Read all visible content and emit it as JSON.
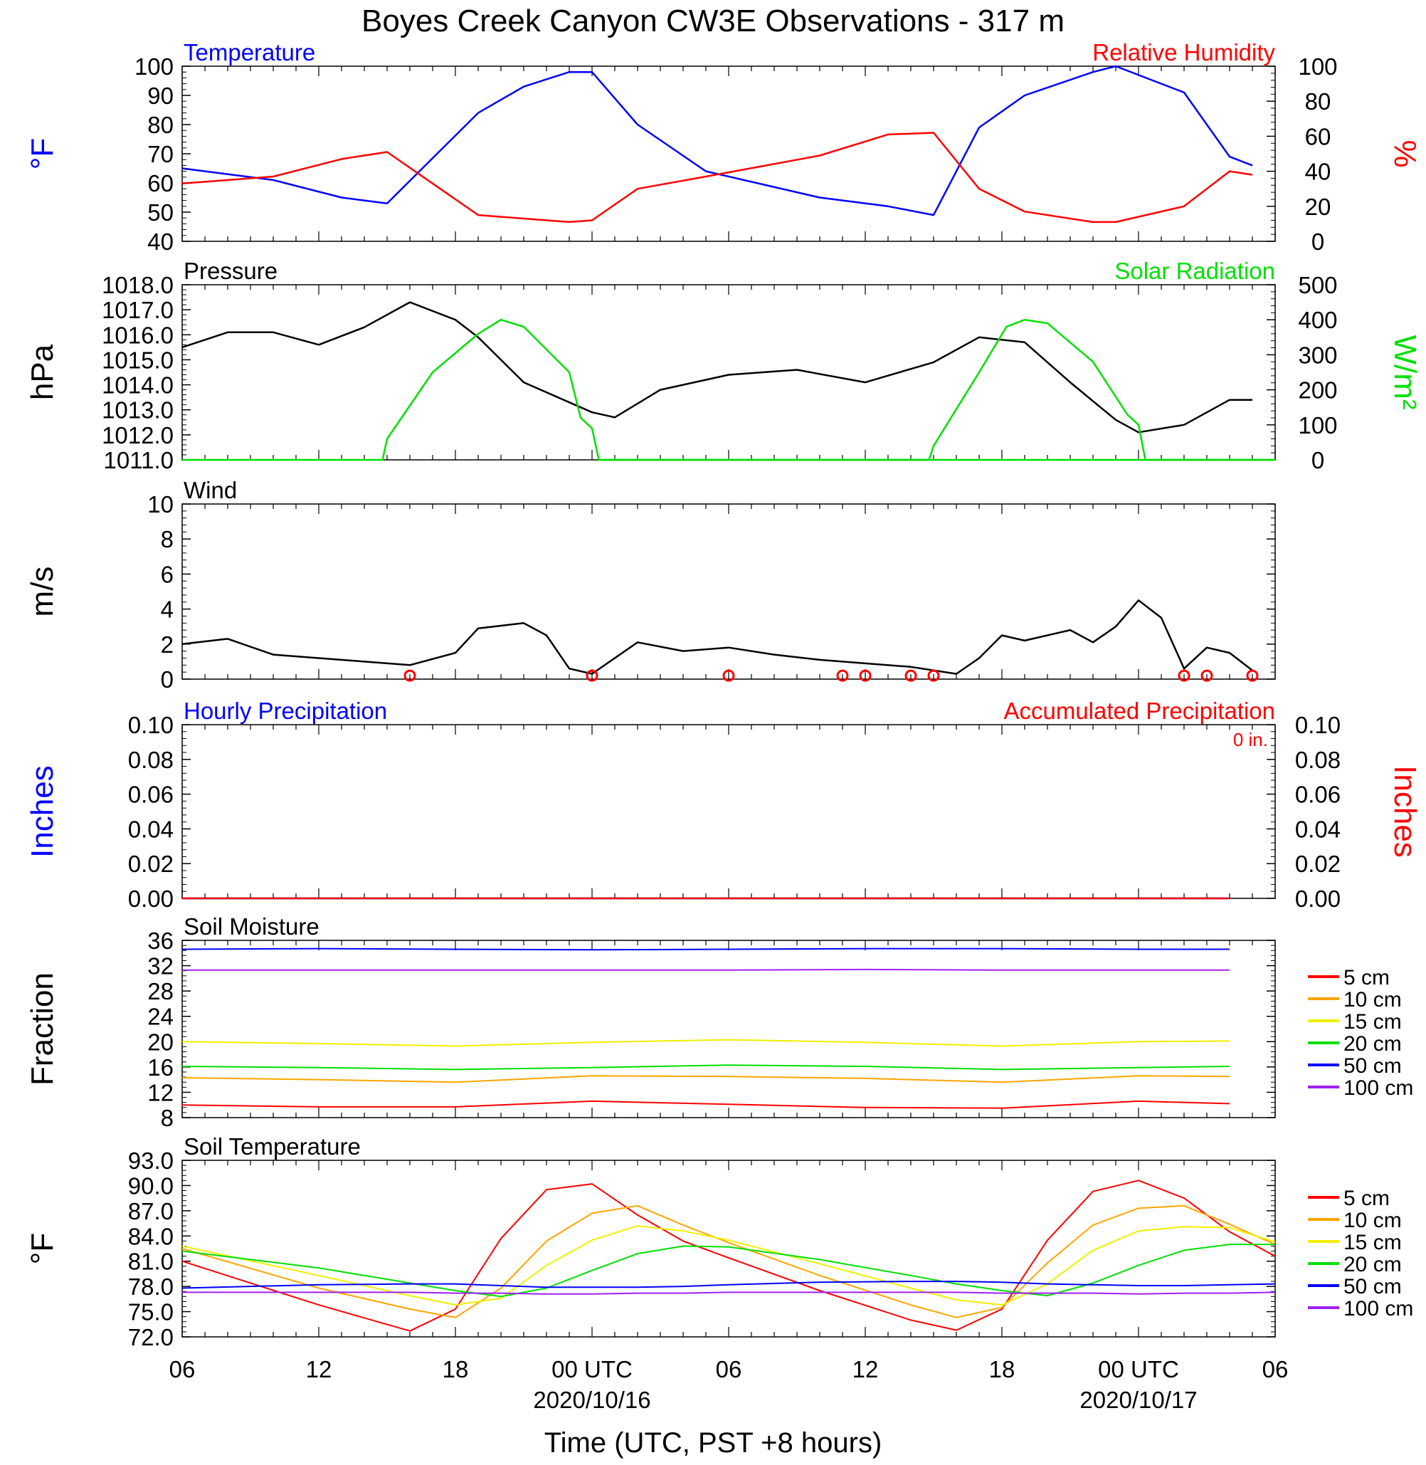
{
  "title": "Boyes Creek Canyon CW3E Observations - 317 m",
  "xlabel": "Time (UTC, PST +8 hours)",
  "x_ticks": [
    {
      "h": 0,
      "label": "06",
      "date": ""
    },
    {
      "h": 6,
      "label": "12",
      "date": ""
    },
    {
      "h": 12,
      "label": "18",
      "date": ""
    },
    {
      "h": 18,
      "label": "00 UTC",
      "date": "2020/10/16"
    },
    {
      "h": 24,
      "label": "06",
      "date": ""
    },
    {
      "h": 30,
      "label": "12",
      "date": ""
    },
    {
      "h": 36,
      "label": "18",
      "date": ""
    },
    {
      "h": 42,
      "label": "00 UTC",
      "date": "2020/10/17"
    },
    {
      "h": 48,
      "label": "06",
      "date": ""
    }
  ],
  "colors": {
    "blue": "#0000ff",
    "red": "#ff0000",
    "green": "#00e000",
    "black": "#000000",
    "orange": "#ffa500",
    "yellow": "#f0f000",
    "purple": "#a020f0"
  },
  "chart_data": [
    {
      "id": "temp_rh",
      "type": "line",
      "left_title": "Temperature",
      "right_title": "Relative Humidity",
      "ylabel_left": "°F",
      "ylabel_right": "%",
      "ylim_left": [
        40,
        100
      ],
      "yticks_left": [
        "40",
        "50",
        "60",
        "70",
        "80",
        "90",
        "100"
      ],
      "ylim_right": [
        0,
        100
      ],
      "yticks_right": [
        "0",
        "20",
        "40",
        "60",
        "80",
        "100"
      ],
      "x_hours": [
        0,
        4,
        7,
        9,
        13,
        15,
        17,
        18,
        20,
        23,
        28,
        31,
        33,
        35,
        37,
        40,
        41,
        44,
        46,
        47
      ],
      "series": [
        {
          "name": "Temperature",
          "color": "blue",
          "axis": "left",
          "values": [
            65,
            61,
            55,
            53,
            84,
            93,
            98,
            98,
            80,
            64,
            55,
            52,
            49,
            79,
            90,
            98,
            100,
            91,
            69,
            66
          ]
        },
        {
          "name": "Relative Humidity",
          "color": "red",
          "axis": "right",
          "values": [
            33,
            37,
            47,
            51,
            15,
            13,
            11,
            12,
            30,
            37,
            49,
            61,
            62,
            30,
            17,
            11,
            11,
            20,
            40,
            38
          ]
        }
      ]
    },
    {
      "id": "pressure_solar",
      "type": "line",
      "left_title": "Pressure",
      "right_title": "Solar Radiation",
      "ylabel_left": "hPa",
      "ylabel_right": "W/m²",
      "ylim_left": [
        1011,
        1018
      ],
      "yticks_left": [
        "1011.0",
        "1012.0",
        "1013.0",
        "1014.0",
        "1015.0",
        "1016.0",
        "1017.0",
        "1018.0"
      ],
      "ylim_right": [
        0,
        500
      ],
      "yticks_right": [
        "0",
        "100",
        "200",
        "300",
        "400",
        "500"
      ],
      "series": [
        {
          "name": "Pressure",
          "color": "black",
          "axis": "left",
          "x_hours": [
            0,
            2,
            4,
            6,
            8,
            10,
            12,
            13,
            15,
            17,
            18,
            19,
            21,
            24,
            27,
            30,
            33,
            35,
            37,
            39,
            41,
            42,
            44,
            46,
            47
          ],
          "values": [
            1015.5,
            1016.1,
            1016.1,
            1015.6,
            1016.3,
            1017.3,
            1016.6,
            1015.9,
            1014.1,
            1013.3,
            1012.9,
            1012.7,
            1013.8,
            1014.4,
            1014.6,
            1014.1,
            1014.9,
            1015.9,
            1015.7,
            1014.1,
            1012.6,
            1012.1,
            1012.4,
            1013.4,
            1013.4
          ]
        },
        {
          "name": "Solar Radiation",
          "color": "green",
          "axis": "right",
          "x_hours": [
            0,
            8.8,
            9,
            11,
            13,
            14,
            15,
            17,
            17.5,
            18,
            18.3,
            48
          ],
          "values": [
            0,
            0,
            60,
            250,
            360,
            400,
            380,
            250,
            120,
            90,
            0,
            0
          ]
        },
        {
          "name": "Solar Radiation",
          "color": "green",
          "axis": "right",
          "x_hours": [
            18.3,
            32.8,
            33,
            35,
            36.2,
            37,
            38,
            40,
            41.5,
            42,
            42.3,
            48
          ],
          "values": [
            0,
            0,
            40,
            250,
            380,
            400,
            390,
            280,
            130,
            100,
            0,
            0
          ]
        }
      ]
    },
    {
      "id": "wind",
      "type": "line",
      "left_title": "Wind",
      "ylabel_left": "m/s",
      "ylim_left": [
        0,
        10
      ],
      "yticks_left": [
        "0",
        "2",
        "4",
        "6",
        "8",
        "10"
      ],
      "x_hours": [
        0,
        2,
        4,
        6,
        8,
        10,
        12,
        13,
        15,
        16,
        17,
        18,
        20,
        22,
        24,
        26,
        28,
        30,
        32,
        34,
        35,
        36,
        37,
        39,
        40,
        41,
        42,
        43,
        44,
        45,
        46,
        47
      ],
      "series": [
        {
          "name": "Wind Speed",
          "color": "black",
          "axis": "left",
          "values": [
            2,
            2.3,
            1.4,
            1.2,
            1,
            0.8,
            1.5,
            2.9,
            3.2,
            2.5,
            0.6,
            0.3,
            2.1,
            1.6,
            1.8,
            1.4,
            1.1,
            0.9,
            0.7,
            0.3,
            1.2,
            2.5,
            2.2,
            2.8,
            2.1,
            3,
            4.5,
            3.5,
            0.6,
            1.8,
            1.5,
            0.5
          ]
        }
      ],
      "calm_hours": [
        10,
        18,
        24,
        29,
        30,
        32,
        33,
        44,
        45,
        47
      ]
    },
    {
      "id": "precip",
      "type": "line",
      "left_title": "Hourly Precipitation",
      "right_title": "Accumulated Precipitation",
      "annotation": "0 in.",
      "ylabel_left": "Inches",
      "ylabel_right": "Inches",
      "ylim_left": [
        0,
        0.1
      ],
      "yticks_left": [
        "0.00",
        "0.02",
        "0.04",
        "0.06",
        "0.08",
        "0.10"
      ],
      "ylim_right": [
        0,
        0.1
      ],
      "yticks_right": [
        "0.00",
        "0.02",
        "0.04",
        "0.06",
        "0.08",
        "0.10"
      ],
      "x_hours": [
        0,
        46
      ],
      "series": [
        {
          "name": "Hourly Precipitation",
          "color": "blue",
          "axis": "left",
          "values": [
            0,
            0
          ]
        },
        {
          "name": "Accumulated Precipitation",
          "color": "red",
          "axis": "left",
          "values": [
            0,
            0
          ]
        }
      ]
    },
    {
      "id": "soil_moisture",
      "type": "line",
      "left_title": "Soil Moisture",
      "ylabel_left": "Fraction",
      "ylim_left": [
        8,
        36
      ],
      "yticks_left": [
        "8",
        "12",
        "16",
        "20",
        "24",
        "28",
        "32",
        "36"
      ],
      "x_hours": [
        0,
        6,
        12,
        18,
        24,
        30,
        36,
        42,
        46
      ],
      "series": [
        {
          "name": "5 cm",
          "color": "red",
          "axis": "left",
          "values": [
            10,
            9.7,
            9.7,
            10.6,
            10.1,
            9.6,
            9.5,
            10.6,
            10.2
          ]
        },
        {
          "name": "10 cm",
          "color": "orange",
          "axis": "left",
          "values": [
            14.3,
            14,
            13.6,
            14.6,
            14.5,
            14.2,
            13.6,
            14.6,
            14.5
          ]
        },
        {
          "name": "15 cm",
          "color": "yellow",
          "axis": "left",
          "values": [
            20,
            19.7,
            19.3,
            19.9,
            20.3,
            19.9,
            19.3,
            20,
            20.1
          ]
        },
        {
          "name": "20 cm",
          "color": "green",
          "axis": "left",
          "values": [
            16.1,
            15.9,
            15.6,
            15.9,
            16.3,
            16.1,
            15.6,
            15.9,
            16.1
          ]
        },
        {
          "name": "50 cm",
          "color": "blue",
          "axis": "left",
          "values": [
            34.6,
            34.7,
            34.6,
            34.5,
            34.6,
            34.7,
            34.7,
            34.6,
            34.6
          ]
        },
        {
          "name": "100 cm",
          "color": "purple",
          "axis": "left",
          "values": [
            31.3,
            31.3,
            31.3,
            31.3,
            31.3,
            31.4,
            31.3,
            31.3,
            31.3
          ]
        }
      ]
    },
    {
      "id": "soil_temp",
      "type": "line",
      "left_title": "Soil Temperature",
      "ylabel_left": "°F",
      "ylim_left": [
        72,
        93
      ],
      "yticks_left": [
        "72.0",
        "75.0",
        "78.0",
        "81.0",
        "84.0",
        "87.0",
        "90.0",
        "93.0"
      ],
      "x_hours": [
        0,
        6,
        10,
        12,
        14,
        16,
        18,
        20,
        22,
        24,
        28,
        32,
        34,
        36,
        38,
        40,
        42,
        44,
        46,
        48
      ],
      "series": [
        {
          "name": "5 cm",
          "color": "red",
          "axis": "left",
          "values": [
            81,
            75.8,
            72.7,
            75.3,
            83.7,
            89.5,
            90.2,
            86.5,
            83.4,
            81.4,
            77.5,
            74,
            72.8,
            75.3,
            83.5,
            89.3,
            90.6,
            88.5,
            84.5,
            81.6
          ]
        },
        {
          "name": "10 cm",
          "color": "orange",
          "axis": "left",
          "values": [
            82.5,
            77.8,
            75.3,
            74.3,
            77.8,
            83.4,
            86.7,
            87.6,
            85.3,
            83.2,
            79.3,
            75.8,
            74.3,
            75.5,
            80.8,
            85.3,
            87.3,
            87.6,
            85.4,
            83
          ]
        },
        {
          "name": "15 cm",
          "color": "yellow",
          "axis": "left",
          "values": [
            82.8,
            79.3,
            76.9,
            75.8,
            76.6,
            80.5,
            83.5,
            85.2,
            84.6,
            83.5,
            80.7,
            77.8,
            76.4,
            75.8,
            78.3,
            82.3,
            84.6,
            85.1,
            85,
            83.3
          ]
        },
        {
          "name": "20 cm",
          "color": "green",
          "axis": "left",
          "values": [
            82.2,
            80.2,
            78.4,
            77.5,
            76.8,
            77.8,
            79.9,
            81.9,
            82.8,
            82.7,
            81.2,
            79.3,
            78.3,
            77.5,
            76.9,
            78.4,
            80.5,
            82.3,
            83,
            83
          ]
        },
        {
          "name": "50 cm",
          "color": "blue",
          "axis": "left",
          "values": [
            77.8,
            78.2,
            78.3,
            78.3,
            78.1,
            77.9,
            77.9,
            77.9,
            78,
            78.2,
            78.5,
            78.6,
            78.6,
            78.5,
            78.3,
            78.2,
            78.1,
            78.1,
            78.2,
            78.3
          ]
        },
        {
          "name": "100 cm",
          "color": "purple",
          "axis": "left",
          "values": [
            77.3,
            77.3,
            77.3,
            77.2,
            77.2,
            77.1,
            77.1,
            77.2,
            77.2,
            77.3,
            77.3,
            77.3,
            77.3,
            77.2,
            77.2,
            77.2,
            77.1,
            77.2,
            77.2,
            77.3
          ]
        }
      ]
    }
  ]
}
